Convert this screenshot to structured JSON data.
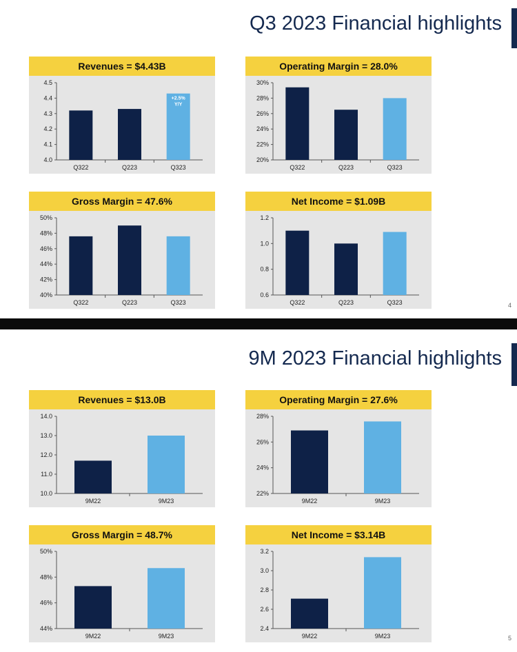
{
  "slides": [
    {
      "title": "Q3 2023 Financial highlights",
      "page_number": "4",
      "colors": {
        "previous": "#0e2147",
        "current": "#5fb1e3",
        "header": "#f5d13f"
      },
      "charts": [
        {
          "type": "bar",
          "title": "Revenues = $4.43B",
          "categories": [
            "Q322",
            "Q223",
            "Q323"
          ],
          "values": [
            4.32,
            4.33,
            4.43
          ],
          "ylim": [
            4.0,
            4.5
          ],
          "yticks": [
            "4.0",
            "4.1",
            "4.2",
            "4.3",
            "4.4",
            "4.5"
          ],
          "bar_colors": [
            "#0e2147",
            "#0e2147",
            "#5fb1e3"
          ],
          "annotation": {
            "bar": 2,
            "lines": [
              "+2.5%",
              "Y/Y"
            ]
          }
        },
        {
          "type": "bar",
          "title": "Operating Margin = 28.0%",
          "categories": [
            "Q322",
            "Q223",
            "Q323"
          ],
          "values": [
            29.4,
            26.5,
            28.0
          ],
          "ylim": [
            20,
            30
          ],
          "yticks": [
            "20%",
            "22%",
            "24%",
            "26%",
            "28%",
            "30%"
          ],
          "bar_colors": [
            "#0e2147",
            "#0e2147",
            "#5fb1e3"
          ]
        },
        {
          "type": "bar",
          "title": "Gross Margin = 47.6%",
          "categories": [
            "Q322",
            "Q223",
            "Q323"
          ],
          "values": [
            47.6,
            49.0,
            47.6
          ],
          "ylim": [
            40,
            50
          ],
          "yticks": [
            "40%",
            "42%",
            "44%",
            "46%",
            "48%",
            "50%"
          ],
          "bar_colors": [
            "#0e2147",
            "#0e2147",
            "#5fb1e3"
          ]
        },
        {
          "type": "bar",
          "title": "Net Income = $1.09B",
          "categories": [
            "Q322",
            "Q223",
            "Q323"
          ],
          "values": [
            1.1,
            1.0,
            1.09
          ],
          "ylim": [
            0.6,
            1.2
          ],
          "yticks": [
            "0.6",
            "0.8",
            "1.0",
            "1.2"
          ],
          "bar_colors": [
            "#0e2147",
            "#0e2147",
            "#5fb1e3"
          ]
        }
      ]
    },
    {
      "title": "9M 2023 Financial highlights",
      "page_number": "5",
      "charts": [
        {
          "type": "bar",
          "title": "Revenues = $13.0B",
          "categories": [
            "9M22",
            "9M23"
          ],
          "values": [
            11.7,
            13.0
          ],
          "ylim": [
            10.0,
            14.0
          ],
          "yticks": [
            "10.0",
            "11.0",
            "12.0",
            "13.0",
            "14.0"
          ],
          "bar_colors": [
            "#0e2147",
            "#5fb1e3"
          ]
        },
        {
          "type": "bar",
          "title": "Operating Margin = 27.6%",
          "categories": [
            "9M22",
            "9M23"
          ],
          "values": [
            26.9,
            27.6
          ],
          "ylim": [
            22,
            28
          ],
          "yticks": [
            "22%",
            "24%",
            "26%",
            "28%"
          ],
          "bar_colors": [
            "#0e2147",
            "#5fb1e3"
          ]
        },
        {
          "type": "bar",
          "title": "Gross Margin = 48.7%",
          "categories": [
            "9M22",
            "9M23"
          ],
          "values": [
            47.3,
            48.7
          ],
          "ylim": [
            44,
            50
          ],
          "yticks": [
            "44%",
            "46%",
            "48%",
            "50%"
          ],
          "bar_colors": [
            "#0e2147",
            "#5fb1e3"
          ]
        },
        {
          "type": "bar",
          "title": "Net Income = $3.14B",
          "categories": [
            "9M22",
            "9M23"
          ],
          "values": [
            2.71,
            3.14
          ],
          "ylim": [
            2.4,
            3.2
          ],
          "yticks": [
            "2.4",
            "2.6",
            "2.8",
            "3.0",
            "3.2"
          ],
          "bar_colors": [
            "#0e2147",
            "#5fb1e3"
          ]
        }
      ]
    }
  ],
  "chart_data": [
    {
      "type": "bar",
      "title": "Revenues = $4.43B",
      "categories": [
        "Q322",
        "Q223",
        "Q323"
      ],
      "values": [
        4.32,
        4.33,
        4.43
      ],
      "ylim": [
        4.0,
        4.5
      ],
      "annotation": "+2.5% Y/Y"
    },
    {
      "type": "bar",
      "title": "Operating Margin = 28.0%",
      "categories": [
        "Q322",
        "Q223",
        "Q323"
      ],
      "values": [
        29.4,
        26.5,
        28.0
      ],
      "ylim": [
        20,
        30
      ]
    },
    {
      "type": "bar",
      "title": "Gross Margin = 47.6%",
      "categories": [
        "Q322",
        "Q223",
        "Q323"
      ],
      "values": [
        47.6,
        49.0,
        47.6
      ],
      "ylim": [
        40,
        50
      ]
    },
    {
      "type": "bar",
      "title": "Net Income = $1.09B",
      "categories": [
        "Q322",
        "Q223",
        "Q323"
      ],
      "values": [
        1.1,
        1.0,
        1.09
      ],
      "ylim": [
        0.6,
        1.2
      ]
    },
    {
      "type": "bar",
      "title": "Revenues = $13.0B",
      "categories": [
        "9M22",
        "9M23"
      ],
      "values": [
        11.7,
        13.0
      ],
      "ylim": [
        10.0,
        14.0
      ]
    },
    {
      "type": "bar",
      "title": "Operating Margin = 27.6%",
      "categories": [
        "9M22",
        "9M23"
      ],
      "values": [
        26.9,
        27.6
      ],
      "ylim": [
        22,
        28
      ]
    },
    {
      "type": "bar",
      "title": "Gross Margin = 48.7%",
      "categories": [
        "9M22",
        "9M23"
      ],
      "values": [
        47.3,
        48.7
      ],
      "ylim": [
        44,
        50
      ]
    },
    {
      "type": "bar",
      "title": "Net Income = $3.14B",
      "categories": [
        "9M22",
        "9M23"
      ],
      "values": [
        2.71,
        3.14
      ],
      "ylim": [
        2.4,
        3.2
      ]
    }
  ]
}
